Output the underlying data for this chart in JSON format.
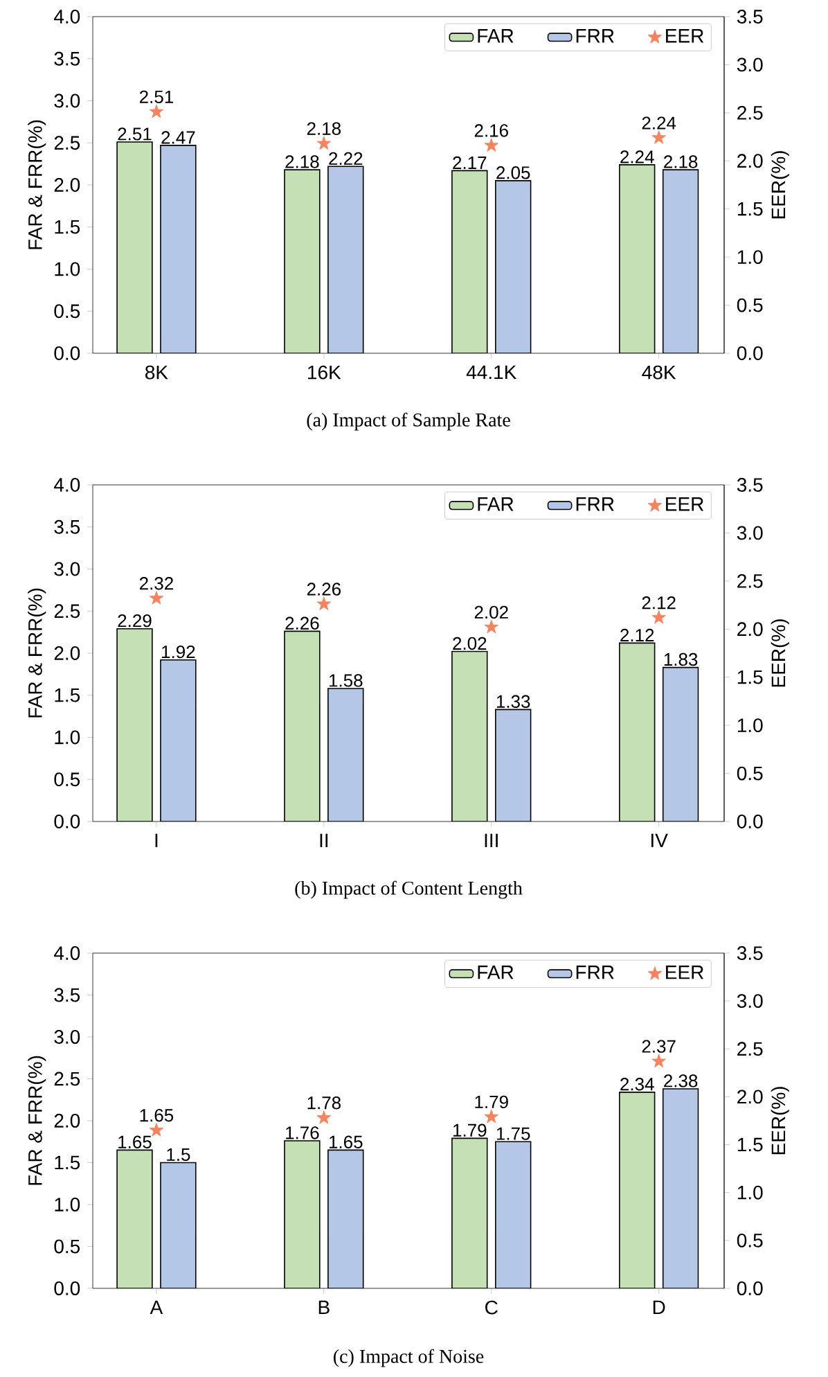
{
  "chart_data": [
    {
      "type": "bar",
      "title": "(a) Impact of Sample Rate",
      "categories": [
        "8K",
        "16K",
        "44.1K",
        "48K"
      ],
      "ylabel": "FAR & FRR(%)",
      "y2label": "EER(%)",
      "ylim": [
        0,
        4
      ],
      "yticks": [
        {
          "value": 0,
          "label": "0.0"
        },
        0.5,
        {
          "value": 1,
          "label": "1.0"
        },
        1.5,
        {
          "value": 2,
          "label": "2.0"
        },
        2.5,
        {
          "value": 3,
          "label": "3.0"
        },
        3.5,
        {
          "value": 4,
          "label": "4.0"
        }
      ],
      "y2lim": [
        0,
        3.5
      ],
      "y2ticks": [
        {
          "value": 0,
          "label": "0.0"
        },
        0.5,
        {
          "value": 1,
          "label": "1.0"
        },
        1.5,
        {
          "value": 2,
          "label": "2.0"
        },
        2.5,
        {
          "value": 3,
          "label": "3.0"
        },
        3.5
      ],
      "legend": "top right",
      "data_labels": true,
      "series": [
        {
          "name": "FAR",
          "type": "bar",
          "color": "#c5e0b4",
          "values": [
            2.51,
            2.18,
            2.17,
            2.24
          ]
        },
        {
          "name": "FRR",
          "type": "bar",
          "color": "#b4c7e7",
          "values": [
            2.47,
            2.22,
            2.05,
            2.18
          ]
        },
        {
          "name": "EER",
          "type": "scatter",
          "axis": "y2",
          "marker": "star",
          "color": "#f4845f",
          "values": [
            2.51,
            2.18,
            2.16,
            2.24
          ]
        }
      ]
    },
    {
      "type": "bar",
      "title": "(b) Impact of Content Length",
      "categories": [
        "I",
        "II",
        "III",
        "IV"
      ],
      "ylabel": "FAR & FRR(%)",
      "y2label": "EER(%)",
      "ylim": [
        0,
        4
      ],
      "yticks": [
        {
          "value": 0,
          "label": "0.0"
        },
        0.5,
        {
          "value": 1,
          "label": "1.0"
        },
        1.5,
        {
          "value": 2,
          "label": "2.0"
        },
        2.5,
        {
          "value": 3,
          "label": "3.0"
        },
        3.5,
        {
          "value": 4,
          "label": "4.0"
        }
      ],
      "y2lim": [
        0,
        3.5
      ],
      "y2ticks": [
        {
          "value": 0,
          "label": "0.0"
        },
        0.5,
        {
          "value": 1,
          "label": "1.0"
        },
        1.5,
        {
          "value": 2,
          "label": "2.0"
        },
        2.5,
        {
          "value": 3,
          "label": "3.0"
        },
        3.5
      ],
      "legend": "top right",
      "data_labels": true,
      "series": [
        {
          "name": "FAR",
          "type": "bar",
          "color": "#c5e0b4",
          "values": [
            2.29,
            2.26,
            2.02,
            2.12
          ]
        },
        {
          "name": "FRR",
          "type": "bar",
          "color": "#b4c7e7",
          "values": [
            1.92,
            1.58,
            1.33,
            1.83
          ]
        },
        {
          "name": "EER",
          "type": "scatter",
          "axis": "y2",
          "marker": "star",
          "color": "#f4845f",
          "values": [
            2.32,
            2.26,
            2.02,
            2.12
          ]
        }
      ]
    },
    {
      "type": "bar",
      "title": "(c) Impact of Noise",
      "categories": [
        "A",
        "B",
        "C",
        "D"
      ],
      "ylabel": "FAR & FRR(%)",
      "y2label": "EER(%)",
      "ylim": [
        0,
        4
      ],
      "yticks": [
        {
          "value": 0,
          "label": "0.0"
        },
        0.5,
        {
          "value": 1,
          "label": "1.0"
        },
        1.5,
        {
          "value": 2,
          "label": "2.0"
        },
        2.5,
        {
          "value": 3,
          "label": "3.0"
        },
        3.5,
        {
          "value": 4,
          "label": "4.0"
        }
      ],
      "y2lim": [
        0,
        3.5
      ],
      "y2ticks": [
        {
          "value": 0,
          "label": "0.0"
        },
        0.5,
        {
          "value": 1,
          "label": "1.0"
        },
        1.5,
        {
          "value": 2,
          "label": "2.0"
        },
        2.5,
        {
          "value": 3,
          "label": "3.0"
        },
        3.5
      ],
      "legend": "top right",
      "data_labels": true,
      "series": [
        {
          "name": "FAR",
          "type": "bar",
          "color": "#c5e0b4",
          "values": [
            1.65,
            1.76,
            1.79,
            2.34
          ]
        },
        {
          "name": "FRR",
          "type": "bar",
          "color": "#b4c7e7",
          "values": [
            1.5,
            1.65,
            1.75,
            2.38
          ]
        },
        {
          "name": "EER",
          "type": "scatter",
          "axis": "y2",
          "marker": "star",
          "color": "#f4845f",
          "values": [
            1.65,
            1.78,
            1.79,
            2.37
          ]
        }
      ]
    }
  ]
}
